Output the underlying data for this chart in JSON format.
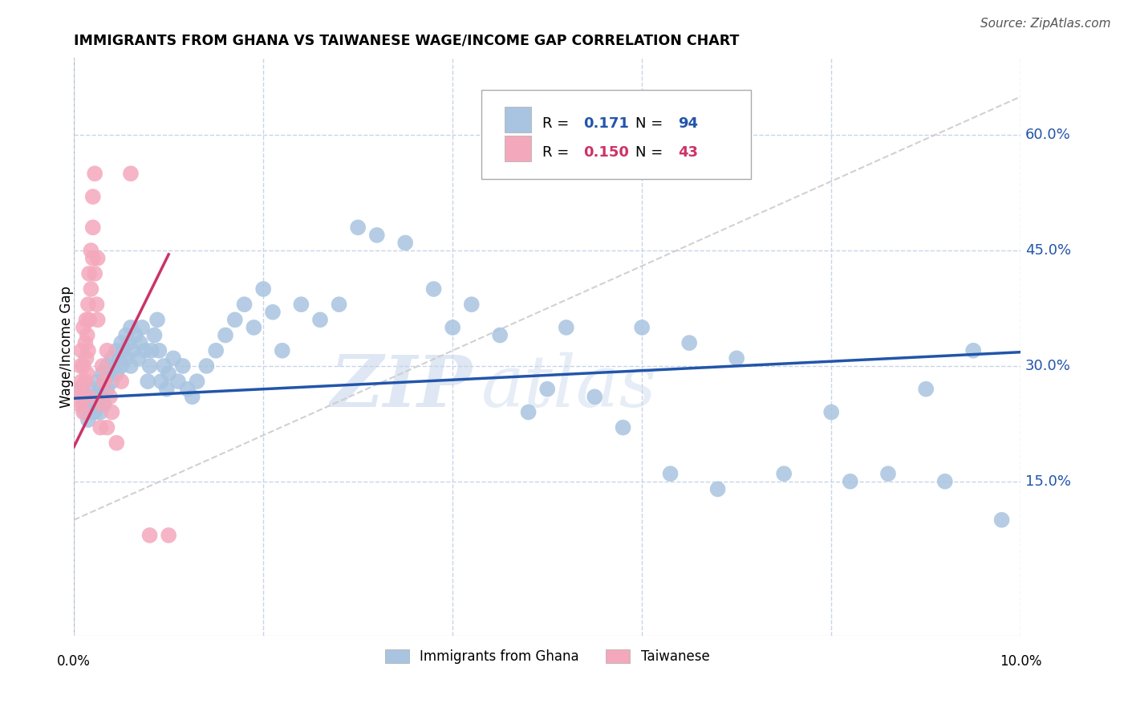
{
  "title": "IMMIGRANTS FROM GHANA VS TAIWANESE WAGE/INCOME GAP CORRELATION CHART",
  "source": "Source: ZipAtlas.com",
  "ylabel": "Wage/Income Gap",
  "yticks": [
    "15.0%",
    "30.0%",
    "45.0%",
    "60.0%"
  ],
  "ytick_vals": [
    0.15,
    0.3,
    0.45,
    0.6
  ],
  "legend_ghana": "Immigrants from Ghana",
  "legend_taiwanese": "Taiwanese",
  "R_ghana": 0.171,
  "N_ghana": 94,
  "R_taiwanese": 0.15,
  "N_taiwanese": 43,
  "color_ghana": "#a8c4e0",
  "color_taiwanese": "#f4a8bc",
  "trendline_ghana_color": "#2255aa",
  "trendline_taiwanese_color": "#cc3366",
  "trendline_dashed_color": "#cccccc",
  "watermark_zip": "ZIP",
  "watermark_atlas": "atlas",
  "background_color": "#ffffff",
  "grid_color": "#c8d4e8",
  "xlim": [
    0.0,
    0.1
  ],
  "ylim": [
    -0.05,
    0.7
  ],
  "ghana_x": [
    0.0008,
    0.001,
    0.0012,
    0.0015,
    0.0015,
    0.0018,
    0.002,
    0.002,
    0.0022,
    0.0022,
    0.0025,
    0.0025,
    0.0028,
    0.0028,
    0.003,
    0.003,
    0.0032,
    0.0032,
    0.0035,
    0.0035,
    0.0038,
    0.004,
    0.004,
    0.0042,
    0.0045,
    0.0045,
    0.0048,
    0.005,
    0.005,
    0.0052,
    0.0055,
    0.0055,
    0.0058,
    0.006,
    0.006,
    0.0062,
    0.0065,
    0.0068,
    0.007,
    0.0072,
    0.0075,
    0.0078,
    0.008,
    0.0082,
    0.0085,
    0.0088,
    0.009,
    0.0092,
    0.0095,
    0.0098,
    0.01,
    0.0105,
    0.011,
    0.0115,
    0.012,
    0.0125,
    0.013,
    0.014,
    0.015,
    0.016,
    0.017,
    0.018,
    0.019,
    0.02,
    0.021,
    0.022,
    0.024,
    0.026,
    0.028,
    0.03,
    0.032,
    0.035,
    0.038,
    0.04,
    0.042,
    0.045,
    0.048,
    0.05,
    0.052,
    0.055,
    0.058,
    0.06,
    0.063,
    0.065,
    0.068,
    0.07,
    0.075,
    0.08,
    0.082,
    0.086,
    0.09,
    0.092,
    0.095,
    0.098
  ],
  "ghana_y": [
    0.27,
    0.25,
    0.24,
    0.26,
    0.23,
    0.25,
    0.27,
    0.24,
    0.26,
    0.24,
    0.28,
    0.25,
    0.27,
    0.24,
    0.29,
    0.26,
    0.28,
    0.25,
    0.3,
    0.27,
    0.29,
    0.31,
    0.28,
    0.3,
    0.32,
    0.29,
    0.31,
    0.33,
    0.3,
    0.32,
    0.34,
    0.31,
    0.33,
    0.35,
    0.3,
    0.32,
    0.34,
    0.31,
    0.33,
    0.35,
    0.32,
    0.28,
    0.3,
    0.32,
    0.34,
    0.36,
    0.32,
    0.28,
    0.3,
    0.27,
    0.29,
    0.31,
    0.28,
    0.3,
    0.27,
    0.26,
    0.28,
    0.3,
    0.32,
    0.34,
    0.36,
    0.38,
    0.35,
    0.4,
    0.37,
    0.32,
    0.38,
    0.36,
    0.38,
    0.48,
    0.47,
    0.46,
    0.4,
    0.35,
    0.38,
    0.34,
    0.24,
    0.27,
    0.35,
    0.26,
    0.22,
    0.35,
    0.16,
    0.33,
    0.14,
    0.31,
    0.16,
    0.24,
    0.15,
    0.16,
    0.27,
    0.15,
    0.32,
    0.1
  ],
  "taiwanese_x": [
    0.0005,
    0.0006,
    0.0007,
    0.0008,
    0.0008,
    0.0009,
    0.001,
    0.001,
    0.001,
    0.0012,
    0.0012,
    0.0013,
    0.0013,
    0.0014,
    0.0014,
    0.0015,
    0.0015,
    0.0015,
    0.0016,
    0.0016,
    0.0018,
    0.0018,
    0.002,
    0.002,
    0.002,
    0.0022,
    0.0022,
    0.0024,
    0.0025,
    0.0025,
    0.0028,
    0.003,
    0.003,
    0.0032,
    0.0035,
    0.0035,
    0.0038,
    0.004,
    0.0045,
    0.005,
    0.006,
    0.008,
    0.01
  ],
  "taiwanese_y": [
    0.27,
    0.25,
    0.3,
    0.28,
    0.32,
    0.26,
    0.24,
    0.3,
    0.35,
    0.28,
    0.33,
    0.31,
    0.36,
    0.29,
    0.34,
    0.32,
    0.38,
    0.26,
    0.36,
    0.42,
    0.45,
    0.4,
    0.48,
    0.44,
    0.52,
    0.42,
    0.55,
    0.38,
    0.44,
    0.36,
    0.22,
    0.3,
    0.25,
    0.28,
    0.32,
    0.22,
    0.26,
    0.24,
    0.2,
    0.28,
    0.55,
    0.08,
    0.08
  ],
  "ghana_trend_x0": 0.0,
  "ghana_trend_y0": 0.258,
  "ghana_trend_x1": 0.1,
  "ghana_trend_y1": 0.318,
  "taiwanese_trend_x0": 0.0,
  "taiwanese_trend_y0": 0.195,
  "taiwanese_trend_x1": 0.01,
  "taiwanese_trend_y1": 0.445,
  "dashed_line_x0": 0.0,
  "dashed_line_y0": 0.1,
  "dashed_line_x1": 0.1,
  "dashed_line_y1": 0.65
}
